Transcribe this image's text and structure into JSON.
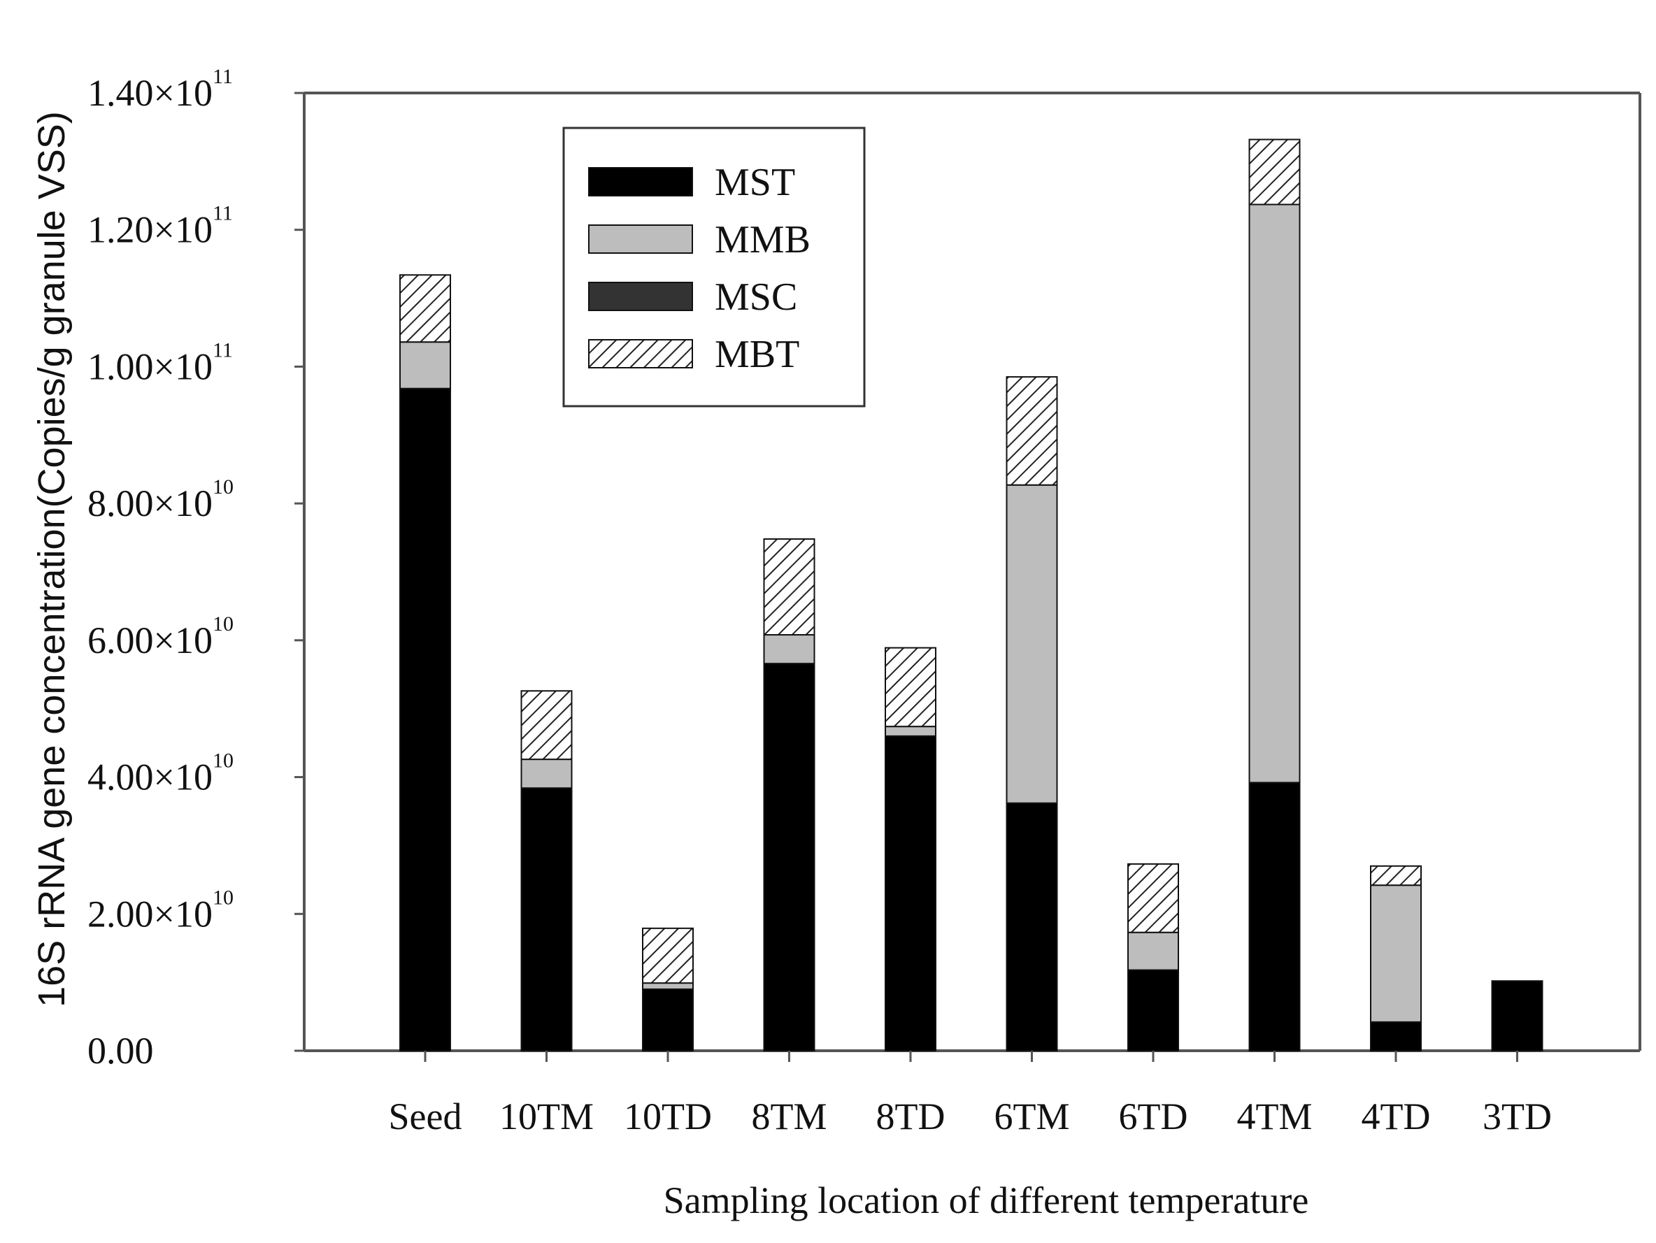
{
  "chart_data": {
    "type": "bar",
    "stacked": true,
    "title": "",
    "xlabel": "Sampling location of different temperature",
    "ylabel": "16S rRNA gene concentration(Copies/g granule VSS)",
    "ylim": [
      0,
      140000000000
    ],
    "yticks": [
      {
        "value": 0,
        "mantissa": "0.00",
        "exponent": ""
      },
      {
        "value": 20000000000,
        "mantissa": "2.00×10",
        "exponent": "10"
      },
      {
        "value": 40000000000,
        "mantissa": "4.00×10",
        "exponent": "10"
      },
      {
        "value": 60000000000,
        "mantissa": "6.00×10",
        "exponent": "10"
      },
      {
        "value": 80000000000,
        "mantissa": "8.00×10",
        "exponent": "10"
      },
      {
        "value": 100000000000,
        "mantissa": "1.00×10",
        "exponent": "11"
      },
      {
        "value": 120000000000,
        "mantissa": "1.20×10",
        "exponent": "11"
      },
      {
        "value": 140000000000,
        "mantissa": "1.40×10",
        "exponent": "11"
      }
    ],
    "grid": false,
    "legend_position": "top-left",
    "categories": [
      "Seed",
      "10TM",
      "10TD",
      "8TM",
      "8TD",
      "6TM",
      "6TD",
      "4TM",
      "4TD",
      "3TD"
    ],
    "series": [
      {
        "name": "MST",
        "fill": "#000000",
        "hatched": false,
        "values": [
          96800000000,
          38400000000,
          9000000000,
          56600000000,
          46000000000,
          36200000000,
          11800000000,
          39200000000,
          4200000000,
          10200000000
        ]
      },
      {
        "name": "MMB",
        "fill": "#bdbdbd",
        "hatched": false,
        "values": [
          6800000000,
          4200000000,
          900000000,
          4200000000,
          1400000000,
          46500000000,
          5500000000,
          84500000000,
          20000000000,
          0
        ]
      },
      {
        "name": "MSC",
        "fill": "#333333",
        "hatched": false,
        "values": [
          0,
          0,
          0,
          0,
          0,
          0,
          0,
          0,
          0,
          0
        ]
      },
      {
        "name": "MBT",
        "fill": "#ffffff",
        "hatched": true,
        "values": [
          9800000000,
          10000000000,
          8000000000,
          14000000000,
          11500000000,
          15800000000,
          10000000000,
          9500000000,
          2800000000,
          0
        ]
      }
    ]
  },
  "colors": {
    "mst": "#000000",
    "mmb": "#bdbdbd",
    "msc": "#333333",
    "mbt_hatch": "#222222",
    "axis": "#555555"
  }
}
